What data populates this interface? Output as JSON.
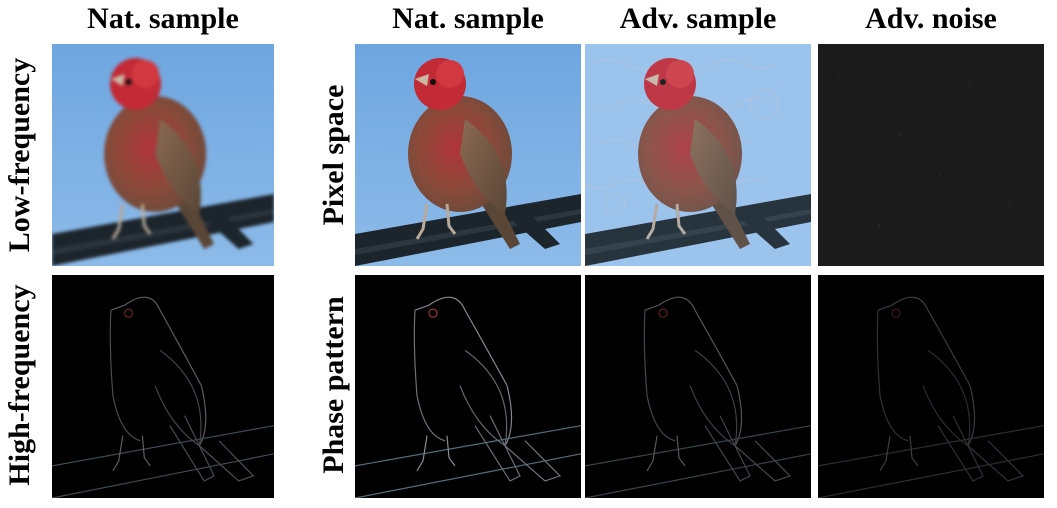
{
  "column_titles": {
    "nat_left": "Nat. sample",
    "nat": "Nat. sample",
    "adv": "Adv. sample",
    "noise": "Adv. noise"
  },
  "row_titles": {
    "low": "Low-frequency",
    "high": "High-frequency",
    "pixel": "Pixel space",
    "phase": "Phase pattern"
  },
  "colors": {
    "sky": "#7fb2e6",
    "sky_adv": "#9cc3ec",
    "bird_head": "#c22a36",
    "bird_body": "#8a4a3a",
    "wire": "#1a2228",
    "edge": "#9fa6ad"
  }
}
